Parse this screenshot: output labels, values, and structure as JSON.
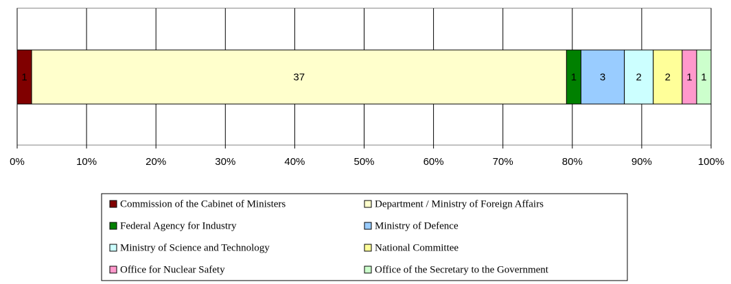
{
  "chart_data": {
    "type": "bar",
    "orientation": "horizontal",
    "stacking": "percent",
    "xlim": [
      0,
      100
    ],
    "xticks": [
      {
        "value": 0,
        "label": "0%"
      },
      {
        "value": 10,
        "label": "10%"
      },
      {
        "value": 20,
        "label": "20%"
      },
      {
        "value": 30,
        "label": "30%"
      },
      {
        "value": 40,
        "label": "40%"
      },
      {
        "value": 50,
        "label": "50%"
      },
      {
        "value": 60,
        "label": "60%"
      },
      {
        "value": 70,
        "label": "70%"
      },
      {
        "value": 80,
        "label": "80%"
      },
      {
        "value": 90,
        "label": "90%"
      },
      {
        "value": 100,
        "label": "100%"
      }
    ],
    "grid": true,
    "legend": "bottom",
    "series": [
      {
        "name": "Commission of the Cabinet of Ministers",
        "color": "#800000",
        "values": [
          1
        ]
      },
      {
        "name": "Department / Ministry of Foreign Affairs",
        "color": "#ffffcc",
        "values": [
          37
        ]
      },
      {
        "name": "Federal Agency for Industry",
        "color": "#008000",
        "values": [
          1
        ]
      },
      {
        "name": "Ministry of Defence",
        "color": "#99ccff",
        "values": [
          3
        ]
      },
      {
        "name": "Ministry of Science and Technology",
        "color": "#ccffff",
        "values": [
          2
        ]
      },
      {
        "name": "National Committee",
        "color": "#ffff99",
        "values": [
          2
        ]
      },
      {
        "name": "Office for Nuclear Safety",
        "color": "#ff99cc",
        "values": [
          1
        ]
      },
      {
        "name": "Office of the Secretary to the Government",
        "color": "#ccffcc",
        "values": [
          1
        ]
      }
    ]
  }
}
